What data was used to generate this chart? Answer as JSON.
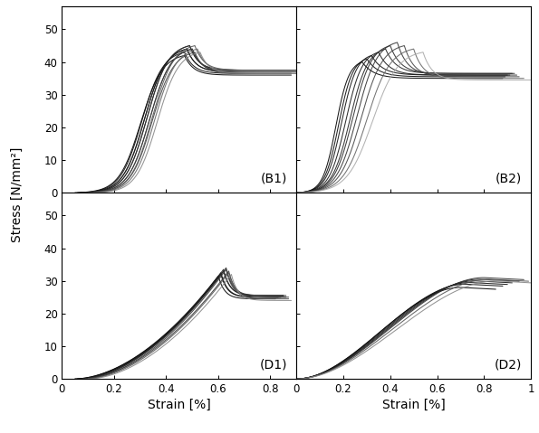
{
  "ylabel": "Stress [N/mm²]",
  "xlabel": "Strain [%]",
  "B1": {
    "n_curves": 12,
    "start_strains": [
      0.05,
      0.06,
      0.07,
      0.07,
      0.08,
      0.08,
      0.09,
      0.09,
      0.1,
      0.1,
      0.11,
      0.12
    ],
    "peak_strains": [
      0.47,
      0.47,
      0.48,
      0.48,
      0.49,
      0.49,
      0.5,
      0.5,
      0.51,
      0.51,
      0.52,
      0.53
    ],
    "peak_stresses": [
      42,
      43,
      44,
      44,
      45,
      45,
      44,
      44,
      43,
      45,
      44,
      43
    ],
    "plateau_stresses": [
      36,
      36.5,
      37,
      37,
      37.5,
      37.5,
      37,
      37,
      36.5,
      37.5,
      37,
      36.5
    ],
    "end_strains": [
      0.88,
      0.88,
      0.89,
      0.89,
      0.9,
      0.9,
      0.9,
      0.91,
      0.91,
      0.92,
      0.92,
      0.93
    ],
    "ylim": [
      0,
      57
    ],
    "xlim": [
      0,
      0.9
    ]
  },
  "B2": {
    "n_curves": 10,
    "start_strains": [
      0.0,
      0.0,
      0.0,
      0.0,
      0.0,
      0.0,
      0.0,
      0.0,
      0.0,
      0.0
    ],
    "peak_strains": [
      0.28,
      0.3,
      0.32,
      0.35,
      0.38,
      0.4,
      0.43,
      0.46,
      0.5,
      0.54
    ],
    "peak_stresses": [
      40,
      41,
      42,
      43,
      44,
      45,
      46,
      45,
      44,
      43
    ],
    "plateau_stresses": [
      35,
      35.5,
      36,
      36,
      36.5,
      36.5,
      36,
      35.5,
      35,
      34.5
    ],
    "end_strains": [
      0.88,
      0.89,
      0.9,
      0.91,
      0.92,
      0.93,
      0.94,
      0.95,
      0.97,
      1.0
    ],
    "ylim": [
      0,
      57
    ],
    "xlim": [
      0,
      1.0
    ]
  },
  "D1": {
    "n_curves": 10,
    "start_strains": [
      0.05,
      0.05,
      0.06,
      0.06,
      0.07,
      0.07,
      0.08,
      0.08,
      0.09,
      0.1
    ],
    "peak_strains": [
      0.6,
      0.61,
      0.61,
      0.62,
      0.62,
      0.63,
      0.63,
      0.64,
      0.64,
      0.65
    ],
    "peak_stresses": [
      31.5,
      32,
      32.5,
      33,
      33.5,
      34,
      33.5,
      33,
      32.5,
      32
    ],
    "plateau_stresses": [
      24.5,
      25,
      25,
      25.5,
      25.5,
      25.5,
      25,
      25,
      24.5,
      24
    ],
    "end_strains": [
      0.82,
      0.83,
      0.84,
      0.85,
      0.85,
      0.86,
      0.86,
      0.87,
      0.87,
      0.88
    ],
    "ylim": [
      0,
      57
    ],
    "xlim": [
      0,
      0.9
    ]
  },
  "D2": {
    "n_curves": 8,
    "start_strains": [
      0.0,
      0.0,
      0.0,
      0.0,
      0.0,
      0.0,
      0.0,
      0.0
    ],
    "peak_strains": [
      0.7,
      0.72,
      0.74,
      0.76,
      0.78,
      0.8,
      0.82,
      0.85
    ],
    "peak_stresses": [
      28,
      29,
      29.5,
      30,
      30.5,
      31,
      30.5,
      30
    ],
    "plateau_stresses": [
      28,
      29,
      29.5,
      30,
      30.5,
      31,
      30.5,
      30
    ],
    "end_strains": [
      0.85,
      0.88,
      0.9,
      0.92,
      0.95,
      0.97,
      0.99,
      1.0
    ],
    "ylim": [
      0,
      57
    ],
    "xlim": [
      0,
      1.0
    ]
  },
  "line_colors_B1": [
    "#000000",
    "#0a0a0a",
    "#111111",
    "#181818",
    "#222222",
    "#2a2a2a",
    "#333333",
    "#3a3a3a",
    "#444444",
    "#555555",
    "#666666",
    "#888888"
  ],
  "line_colors_B2": [
    "#000000",
    "#0a0a0a",
    "#111111",
    "#181818",
    "#222222",
    "#2a2a2a",
    "#333333",
    "#444444",
    "#666666",
    "#aaaaaa"
  ],
  "line_colors_D1": [
    "#000000",
    "#0a0a0a",
    "#111111",
    "#181818",
    "#222222",
    "#2a2a2a",
    "#333333",
    "#3a3a3a",
    "#555555",
    "#888888"
  ],
  "line_colors_D2": [
    "#000000",
    "#0a0a0a",
    "#111111",
    "#181818",
    "#222222",
    "#333333",
    "#555555",
    "#888888"
  ],
  "linewidth": 0.75,
  "label_fontsize": 10,
  "tick_fontsize": 8.5,
  "panel_label_fontsize": 10
}
